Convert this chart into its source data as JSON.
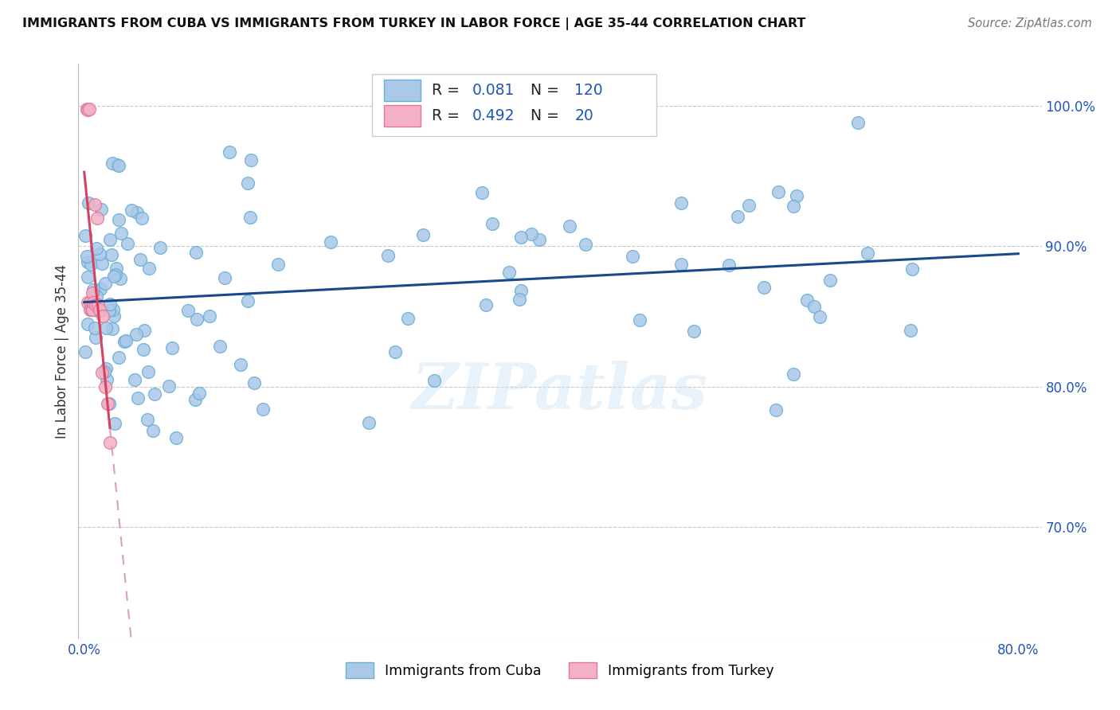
{
  "title": "IMMIGRANTS FROM CUBA VS IMMIGRANTS FROM TURKEY IN LABOR FORCE | AGE 35-44 CORRELATION CHART",
  "source": "Source: ZipAtlas.com",
  "ylabel": "In Labor Force | Age 35-44",
  "xlim": [
    -0.005,
    0.82
  ],
  "ylim": [
    0.62,
    1.03
  ],
  "x_tick_positions": [
    0.0,
    0.1,
    0.2,
    0.3,
    0.4,
    0.5,
    0.6,
    0.7,
    0.8
  ],
  "x_tick_labels": [
    "0.0%",
    "",
    "",
    "",
    "",
    "",
    "",
    "",
    "80.0%"
  ],
  "y_ticks_right": [
    0.7,
    0.8,
    0.9,
    1.0
  ],
  "y_tick_labels_right": [
    "70.0%",
    "80.0%",
    "90.0%",
    "100.0%"
  ],
  "cuba_color": "#aac8e8",
  "cuba_edge_color": "#6aaed6",
  "turkey_color": "#f4b0c4",
  "turkey_edge_color": "#e07898",
  "cuba_line_color": "#1a4a8c",
  "turkey_line_color": "#d84060",
  "turkey_dash_color": "#d8a0b8",
  "legend_label_cuba": "Immigrants from Cuba",
  "legend_label_turkey": "Immigrants from Turkey",
  "watermark": "ZIPatlas",
  "cuba_R": "0.081",
  "cuba_N": "120",
  "turkey_R": "0.492",
  "turkey_N": "20"
}
